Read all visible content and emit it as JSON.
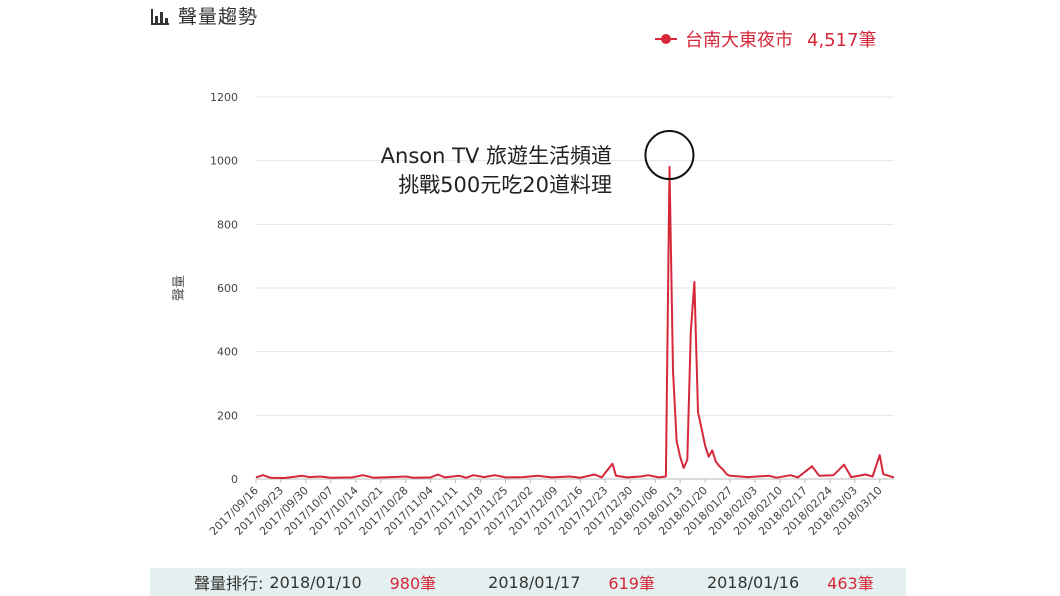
{
  "header": {
    "title": "聲量趨勢",
    "icon": "bar-chart-icon"
  },
  "legend": {
    "name": "台南大東夜市",
    "count": "4,517筆",
    "color": "#d6283a"
  },
  "annotation": {
    "line1": "Anson TV 旅遊生活頻道",
    "line2": "挑戰500元吃20道料理"
  },
  "ranking": {
    "label": "聲量排行:",
    "items": [
      {
        "date": "2018/01/10",
        "value": "980筆"
      },
      {
        "date": "2018/01/17",
        "value": "619筆"
      },
      {
        "date": "2018/01/16",
        "value": "463筆"
      }
    ]
  },
  "chart_data": {
    "type": "line",
    "ylabel": "聲量",
    "xlabel": "",
    "title": "",
    "ylim": [
      0,
      1200
    ],
    "yticks": [
      0,
      200,
      400,
      600,
      800,
      1000,
      1200
    ],
    "x_start": "2017/09/16",
    "x_end": "2018/03/14",
    "xticks": [
      "2017/09/16",
      "2017/09/23",
      "2017/09/30",
      "2017/10/07",
      "2017/10/14",
      "2017/10/21",
      "2017/10/28",
      "2017/11/04",
      "2017/11/11",
      "2017/11/18",
      "2017/11/25",
      "2017/12/02",
      "2017/12/09",
      "2017/12/16",
      "2017/12/23",
      "2017/12/30",
      "2018/01/06",
      "2018/01/13",
      "2018/01/20",
      "2018/01/27",
      "2018/02/03",
      "2018/02/10",
      "2018/02/17",
      "2018/02/24",
      "2018/03/03",
      "2018/03/10"
    ],
    "grid": true,
    "series": [
      {
        "name": "台南大東夜市",
        "color": "#d6283a",
        "points": [
          [
            "2017/09/16",
            5
          ],
          [
            "2017/09/18",
            12
          ],
          [
            "2017/09/20",
            4
          ],
          [
            "2017/09/24",
            3
          ],
          [
            "2017/09/29",
            10
          ],
          [
            "2017/10/01",
            6
          ],
          [
            "2017/10/04",
            8
          ],
          [
            "2017/10/07",
            4
          ],
          [
            "2017/10/13",
            5
          ],
          [
            "2017/10/16",
            12
          ],
          [
            "2017/10/19",
            4
          ],
          [
            "2017/10/24",
            6
          ],
          [
            "2017/10/28",
            8
          ],
          [
            "2017/10/30",
            4
          ],
          [
            "2017/11/04",
            5
          ],
          [
            "2017/11/06",
            14
          ],
          [
            "2017/11/08",
            5
          ],
          [
            "2017/11/12",
            10
          ],
          [
            "2017/11/14",
            4
          ],
          [
            "2017/11/16",
            12
          ],
          [
            "2017/11/19",
            6
          ],
          [
            "2017/11/22",
            12
          ],
          [
            "2017/11/25",
            5
          ],
          [
            "2017/11/30",
            6
          ],
          [
            "2017/12/04",
            10
          ],
          [
            "2017/12/08",
            5
          ],
          [
            "2017/12/13",
            8
          ],
          [
            "2017/12/16",
            4
          ],
          [
            "2017/12/20",
            14
          ],
          [
            "2017/12/22",
            5
          ],
          [
            "2017/12/25",
            48
          ],
          [
            "2017/12/26",
            10
          ],
          [
            "2017/12/29",
            5
          ],
          [
            "2018/01/02",
            8
          ],
          [
            "2018/01/04",
            12
          ],
          [
            "2018/01/07",
            5
          ],
          [
            "2018/01/09",
            8
          ],
          [
            "2018/01/10",
            980
          ],
          [
            "2018/01/11",
            340
          ],
          [
            "2018/01/12",
            120
          ],
          [
            "2018/01/13",
            70
          ],
          [
            "2018/01/14",
            35
          ],
          [
            "2018/01/15",
            60
          ],
          [
            "2018/01/16",
            463
          ],
          [
            "2018/01/17",
            619
          ],
          [
            "2018/01/18",
            210
          ],
          [
            "2018/01/19",
            160
          ],
          [
            "2018/01/20",
            105
          ],
          [
            "2018/01/21",
            70
          ],
          [
            "2018/01/22",
            90
          ],
          [
            "2018/01/23",
            55
          ],
          [
            "2018/01/24",
            40
          ],
          [
            "2018/01/25",
            30
          ],
          [
            "2018/01/26",
            15
          ],
          [
            "2018/01/27",
            10
          ],
          [
            "2018/02/01",
            6
          ],
          [
            "2018/02/07",
            10
          ],
          [
            "2018/02/09",
            4
          ],
          [
            "2018/02/13",
            12
          ],
          [
            "2018/02/15",
            5
          ],
          [
            "2018/02/19",
            40
          ],
          [
            "2018/02/21",
            10
          ],
          [
            "2018/02/25",
            12
          ],
          [
            "2018/02/28",
            45
          ],
          [
            "2018/03/02",
            6
          ],
          [
            "2018/03/06",
            14
          ],
          [
            "2018/03/08",
            8
          ],
          [
            "2018/03/10",
            75
          ],
          [
            "2018/03/11",
            15
          ],
          [
            "2018/03/14",
            5
          ]
        ]
      }
    ]
  }
}
